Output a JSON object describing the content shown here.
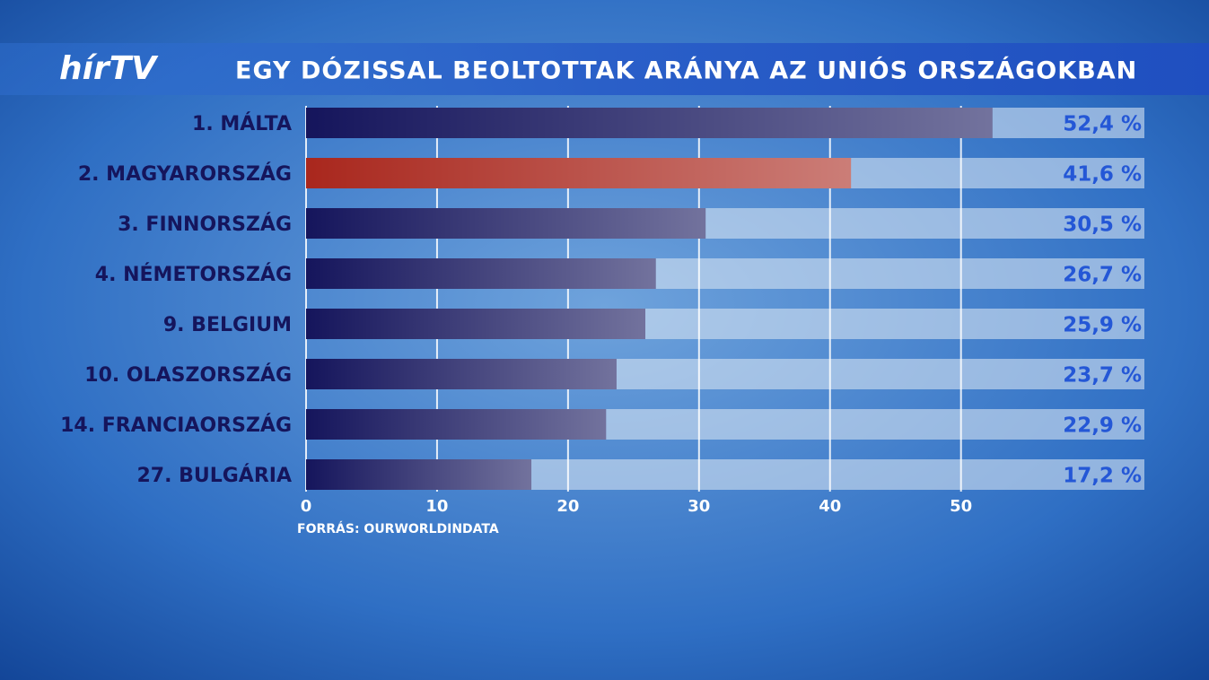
{
  "chart_data": {
    "type": "bar",
    "orientation": "horizontal",
    "logo": "hírTV",
    "title": "EGY DÓZISSAL BEOLTOTTAK ARÁNYA AZ UNIÓS ORSZÁGOKBAN",
    "source": "FORRÁS: OURWORLDINDATA",
    "categories": [
      "1. MÁLTA",
      "2. MAGYARORSZÁG",
      "3. FINNORSZÁG",
      "4. NÉMETORSZÁG",
      "9. BELGIUM",
      "10. OLASZORSZÁG",
      "14. FRANCIAORSZÁG",
      "27. BULGÁRIA"
    ],
    "values": [
      52.4,
      41.6,
      30.5,
      26.7,
      25.9,
      23.7,
      22.9,
      17.2
    ],
    "value_labels": [
      "52,4 %",
      "41,6 %",
      "30,5 %",
      "26,7 %",
      "25,9 %",
      "23,7 %",
      "22,9 %",
      "17,2 %"
    ],
    "colors": [
      "#15155c",
      "#a9271d",
      "#15155c",
      "#15155c",
      "#15155c",
      "#15155c",
      "#15155c",
      "#15155c"
    ],
    "xlim": [
      0,
      64
    ],
    "xticks": [
      0,
      10,
      20,
      30,
      40,
      50
    ],
    "grid": true
  }
}
